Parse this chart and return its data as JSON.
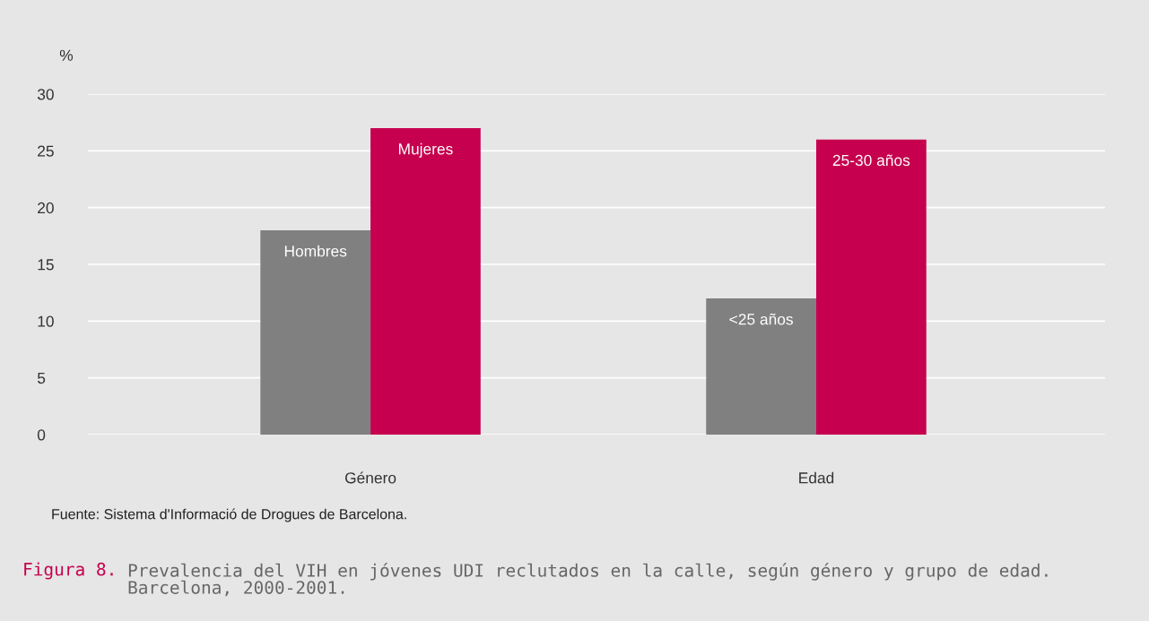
{
  "chart_data": {
    "type": "bar",
    "ylabel": "%",
    "categories": [
      "Género",
      "Edad"
    ],
    "series": [
      {
        "color": "#808080",
        "values": [
          18,
          12
        ]
      },
      {
        "color": "#c6004e",
        "values": [
          27,
          26
        ]
      }
    ],
    "ylim": [
      0,
      30
    ],
    "yticks": [
      0,
      5,
      10,
      15,
      20,
      25,
      30
    ],
    "grid": "y",
    "legend": false,
    "annotations": [
      {
        "text": "Hombres",
        "x": "Género",
        "y": 18
      },
      {
        "text": "Mujeres",
        "x": "Género",
        "y": 27
      },
      {
        "text": "<25 años",
        "x": "Edad",
        "y": 12
      },
      {
        "text": "25-30 años",
        "x": "Edad",
        "y": 26
      },
      "Fuente: Sistema d'Informació de Drogues de Barcelona.",
      "Figura 8.",
      "Prevalencia del VIH en jóvenes UDI reclutados en la calle, según género y grupo de edad. Barcelona, 2000-2001."
    ]
  }
}
